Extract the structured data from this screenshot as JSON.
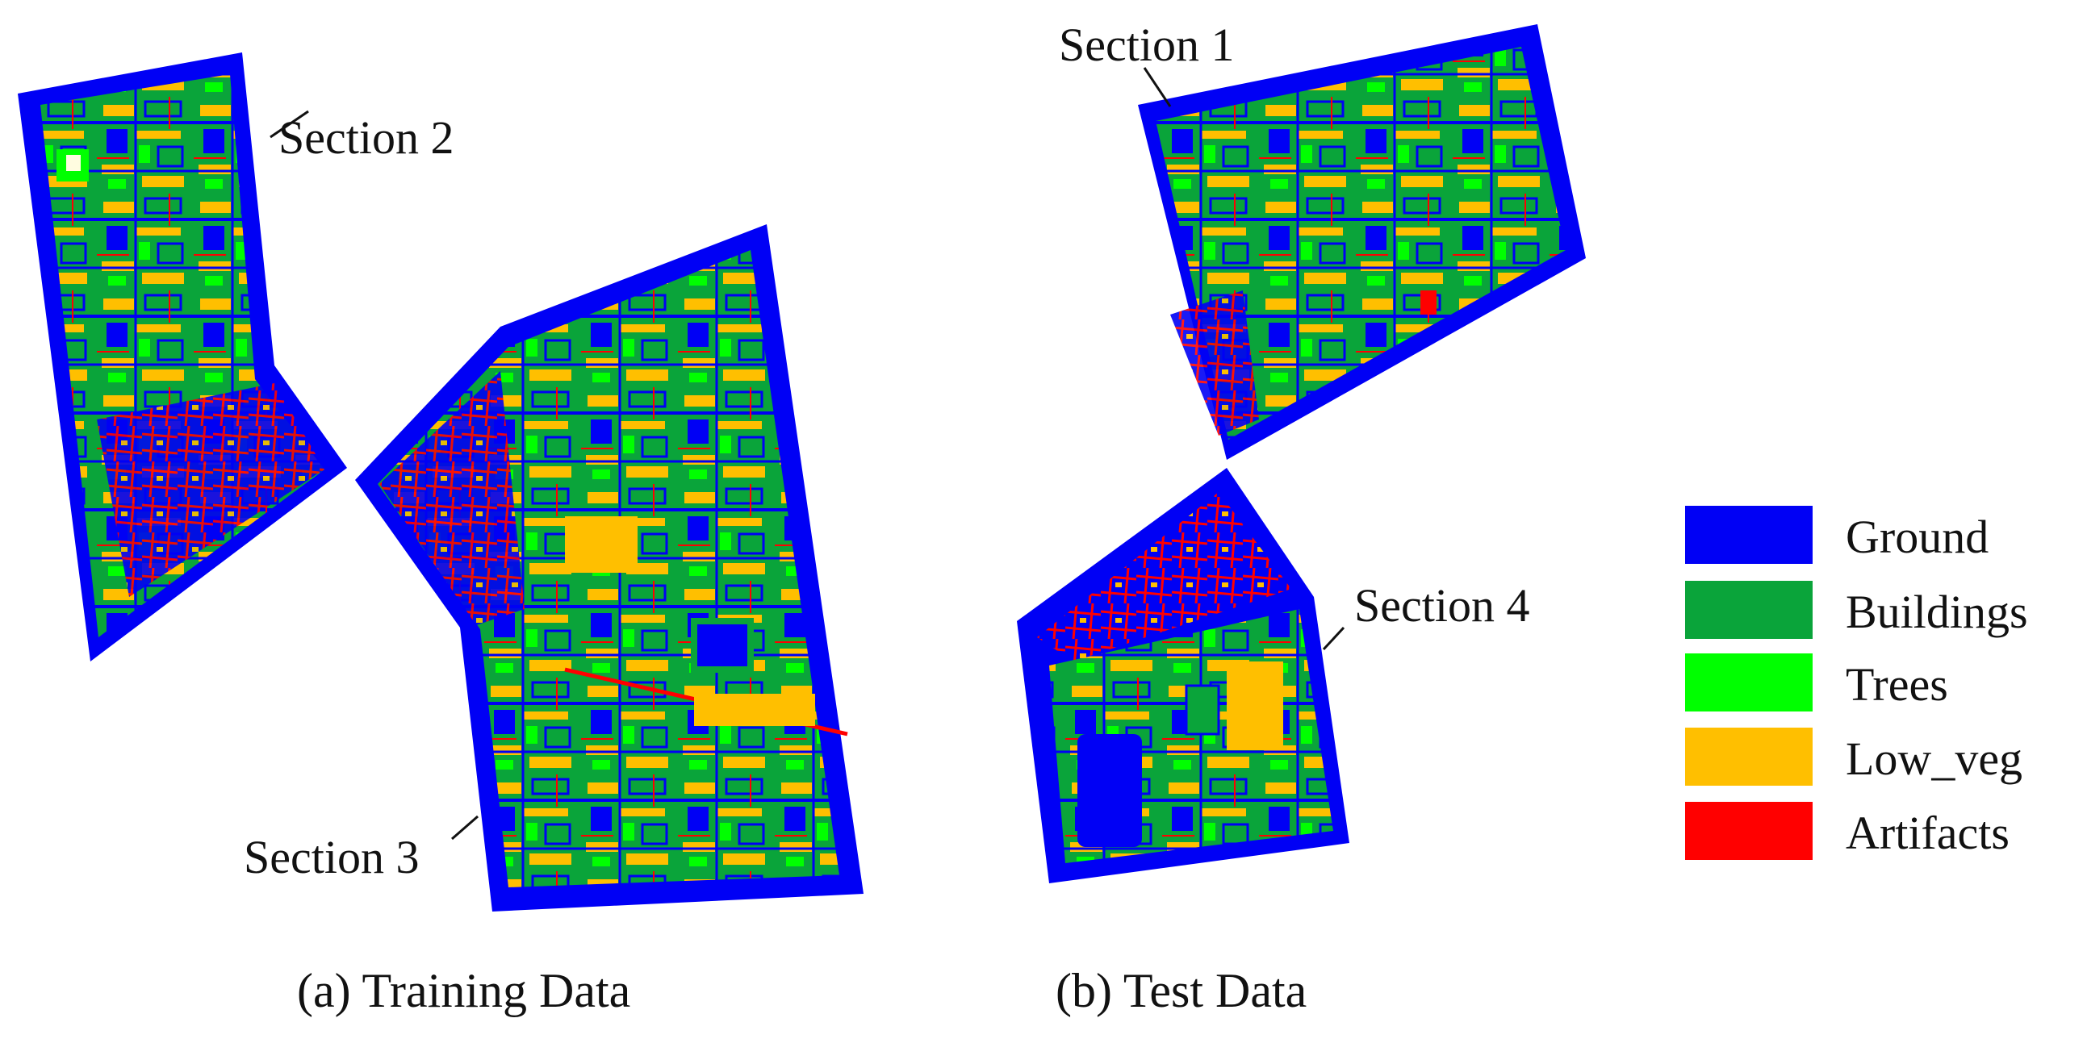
{
  "panels": [
    {
      "caption": "(a) Training Data"
    },
    {
      "caption": "(b) Test Data"
    }
  ],
  "sections": [
    {
      "label": "Section 1"
    },
    {
      "label": "Section 2"
    },
    {
      "label": "Section 3"
    },
    {
      "label": "Section 4"
    }
  ],
  "legend": [
    {
      "label": "Ground",
      "color": "#0000f5"
    },
    {
      "label": "Buildings",
      "color": "#0aa43a"
    },
    {
      "label": "Trees",
      "color": "#00ff00"
    },
    {
      "label": "Low_veg",
      "color": "#ffbf00"
    },
    {
      "label": "Artifacts",
      "color": "#ff0000"
    }
  ]
}
